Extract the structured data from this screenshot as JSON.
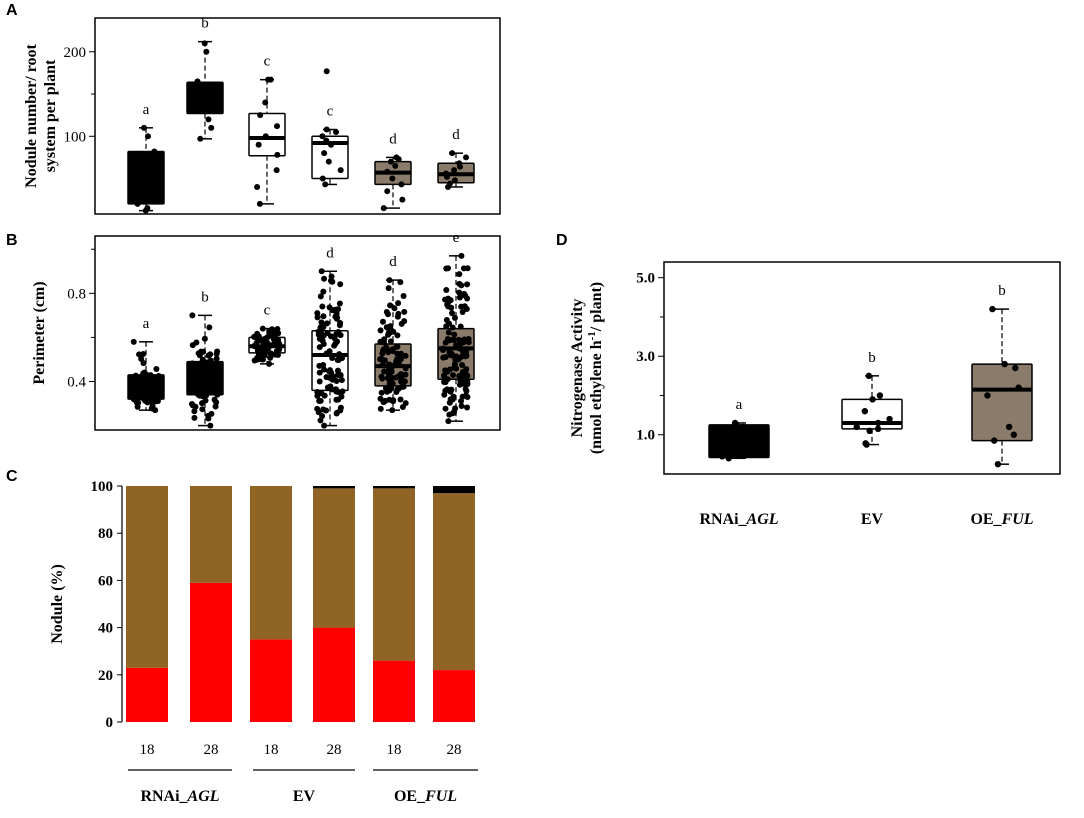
{
  "panels": {
    "A": "A",
    "B": "B",
    "C": "C",
    "D": "D"
  },
  "colors": {
    "black": "#000000",
    "white": "#ffffff",
    "taupe": "#8b7b6b",
    "brown": "#8f6424",
    "red": "#ff0000"
  },
  "chart_data": [
    {
      "id": "A",
      "type": "box",
      "ylabel": [
        "Nodule number/ root",
        "system per plant"
      ],
      "ylim": [
        8,
        240
      ],
      "yticks": [
        100,
        200
      ],
      "minor_ticks": [
        150
      ],
      "boxes": [
        {
          "color": "black",
          "sig": "a",
          "whisker_low": 12,
          "q1": 20,
          "median": 55,
          "q3": 82,
          "whisker_high": 110,
          "points": [
            12,
            15,
            20,
            30,
            45,
            60,
            75,
            82,
            100,
            110
          ]
        },
        {
          "color": "black",
          "sig": "b",
          "whisker_low": 97,
          "q1": 127,
          "median": 145,
          "q3": 164,
          "whisker_high": 212,
          "points": [
            97,
            110,
            120,
            130,
            140,
            150,
            160,
            165,
            200,
            210
          ]
        },
        {
          "color": "white",
          "sig": "c",
          "whisker_low": 20,
          "q1": 77,
          "median": 98,
          "q3": 127,
          "whisker_high": 167,
          "points": [
            20,
            40,
            60,
            78,
            90,
            100,
            112,
            125,
            140,
            167,
            167
          ]
        },
        {
          "color": "white",
          "sig": "c",
          "whisker_low": 43,
          "q1": 50,
          "median": 92,
          "q3": 100,
          "whisker_high": 108,
          "points": [
            43,
            50,
            60,
            70,
            80,
            90,
            95,
            100,
            105,
            108,
            177
          ]
        },
        {
          "color": "taupe",
          "sig": "d",
          "whisker_low": 15,
          "q1": 43,
          "median": 57,
          "q3": 70,
          "whisker_high": 75,
          "points": [
            15,
            25,
            35,
            43,
            50,
            58,
            65,
            70,
            73,
            75
          ]
        },
        {
          "color": "taupe",
          "sig": "d",
          "whisker_low": 40,
          "q1": 45,
          "median": 55,
          "q3": 68,
          "whisker_high": 80,
          "points": [
            40,
            44,
            48,
            52,
            56,
            60,
            64,
            68,
            75,
            80
          ]
        }
      ]
    },
    {
      "id": "B",
      "type": "box",
      "ylabel": [
        "Perimeter (cm)"
      ],
      "ylim": [
        0.18,
        1.06
      ],
      "yticks": [
        0.4,
        0.8
      ],
      "minor_ticks": [
        0.6,
        1.0
      ],
      "boxes": [
        {
          "color": "black",
          "sig": "a",
          "whisker_low": 0.27,
          "q1": 0.32,
          "median": 0.36,
          "q3": 0.43,
          "whisker_high": 0.58,
          "n": 60
        },
        {
          "color": "black",
          "sig": "b",
          "whisker_low": 0.2,
          "q1": 0.34,
          "median": 0.4,
          "q3": 0.49,
          "whisker_high": 0.7,
          "n": 80
        },
        {
          "color": "white",
          "sig": "c",
          "whisker_low": 0.48,
          "q1": 0.53,
          "median": 0.56,
          "q3": 0.6,
          "whisker_high": 0.64,
          "n": 60
        },
        {
          "color": "white",
          "sig": "d",
          "whisker_low": 0.2,
          "q1": 0.36,
          "median": 0.52,
          "q3": 0.63,
          "whisker_high": 0.9,
          "n": 100
        },
        {
          "color": "taupe",
          "sig": "d",
          "whisker_low": 0.27,
          "q1": 0.38,
          "median": 0.47,
          "q3": 0.57,
          "whisker_high": 0.86,
          "n": 100
        },
        {
          "color": "taupe",
          "sig": "e",
          "whisker_low": 0.22,
          "q1": 0.41,
          "median": 0.55,
          "q3": 0.64,
          "whisker_high": 0.97,
          "n": 120
        }
      ]
    },
    {
      "id": "C",
      "type": "bar",
      "ylabel": "Nodule  (%)",
      "ylim": [
        0,
        100
      ],
      "yticks": [
        0,
        20,
        40,
        60,
        80,
        100
      ],
      "categories": [
        "18",
        "28",
        "18",
        "28",
        "18",
        "28"
      ],
      "groups": [
        {
          "label": "RNAi_",
          "italic": "AGL"
        },
        {
          "label": "EV",
          "italic": ""
        },
        {
          "label": "OE_",
          "italic": "FUL"
        }
      ],
      "series": [
        {
          "name": "red",
          "color": "red",
          "values": [
            23,
            59,
            35,
            40,
            26,
            22
          ]
        },
        {
          "name": "brown",
          "color": "brown",
          "values": [
            77,
            41,
            65,
            59,
            73,
            75
          ]
        },
        {
          "name": "black",
          "color": "black",
          "values": [
            0,
            0,
            0,
            1,
            1,
            3
          ]
        }
      ]
    },
    {
      "id": "D",
      "type": "box",
      "ylabel": [
        "Nitrogenase Activity",
        "(nmol ethylene h",
        "-1",
        "/ plant)"
      ],
      "ylim": [
        0.0,
        5.4
      ],
      "yticks": [
        1.0,
        3.0,
        5.0
      ],
      "ytick_labels": [
        "1.0",
        "3.0",
        "5.0"
      ],
      "minor_ticks": [
        2.0,
        4.0
      ],
      "groups": [
        {
          "label": "RNAi_",
          "italic": "AGL"
        },
        {
          "label": "EV",
          "italic": ""
        },
        {
          "label": "OE_",
          "italic": "FUL"
        }
      ],
      "boxes": [
        {
          "color": "black",
          "sig": "a",
          "whisker_low": 0.4,
          "q1": 0.42,
          "median": 0.9,
          "q3": 1.25,
          "whisker_high": 1.3,
          "points": [
            0.4,
            0.45,
            0.6,
            0.8,
            1.0,
            1.2,
            1.3
          ]
        },
        {
          "color": "white",
          "sig": "b",
          "whisker_low": 0.75,
          "q1": 1.15,
          "median": 1.3,
          "q3": 1.9,
          "whisker_high": 2.5,
          "points": [
            0.75,
            0.78,
            1.1,
            1.15,
            1.2,
            1.3,
            1.4,
            1.6,
            1.9,
            2.0,
            2.5
          ]
        },
        {
          "color": "taupe",
          "sig": "b",
          "whisker_low": 0.25,
          "q1": 0.85,
          "median": 2.15,
          "q3": 2.8,
          "whisker_high": 4.2,
          "points": [
            0.25,
            0.85,
            1.0,
            1.2,
            2.0,
            2.2,
            2.7,
            2.8,
            4.2
          ]
        }
      ]
    }
  ]
}
